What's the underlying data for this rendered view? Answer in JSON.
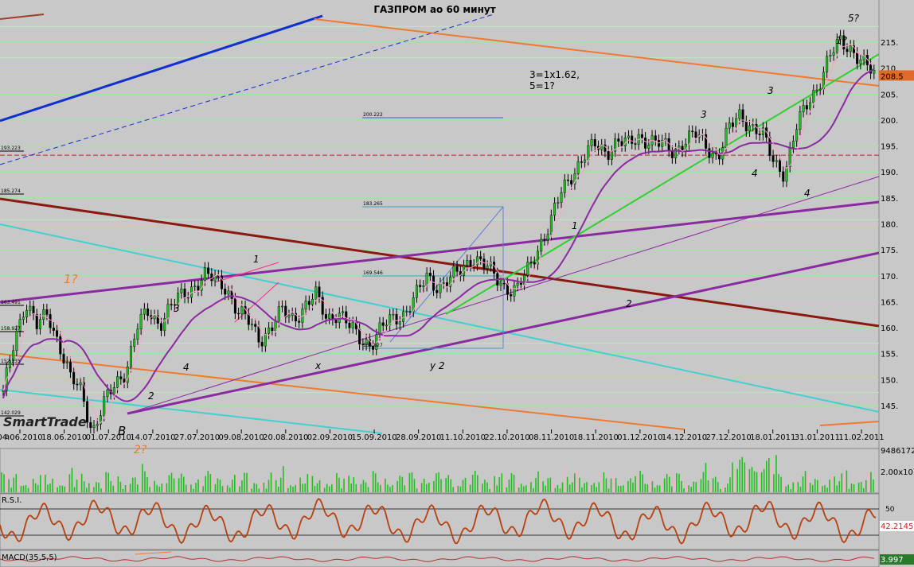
{
  "chart_data": [
    {
      "type": "candlestick",
      "title": "ГАЗПРОМ ао 60 минут",
      "y_ticks": [
        "215.",
        "210.",
        "208.5",
        "205.",
        "200.",
        "195.",
        "190.",
        "185.",
        "180.",
        "175.",
        "170.",
        "165.",
        "160.",
        "155.",
        "150.",
        "145."
      ],
      "ylim": [
        141,
        220
      ],
      "x_ticks": [
        "04.06.2010",
        "18.06.2010",
        "01.07.2010",
        "14.07.2010",
        "27.07.2010",
        "09.08.2010",
        "20.08.2010",
        "02.09.2010",
        "15.09.2010",
        "28.09.2010",
        "11.10.2010",
        "22.10.2010",
        "08.11.2010",
        "18.11.2010",
        "01.12.2010",
        "14.12.2010",
        "27.12.2010",
        "18.01.2011",
        "31.01.2011",
        "11.02.2011"
      ],
      "x_axis_prefix": "a",
      "current_price": "208.5",
      "level_labels": [
        "200.222",
        "193.223",
        "185.274",
        "183.265",
        "169.546",
        "163.491",
        "158.927",
        "155.827",
        "152.235",
        "142.029"
      ],
      "wave_labels": [
        "1?",
        "2?",
        "B",
        "1",
        "2",
        "3",
        "4",
        "x",
        "y 2",
        "1",
        "2",
        "3",
        "4",
        "3",
        "4",
        "1?",
        "5?"
      ],
      "annotation": [
        "3=1x1.62,",
        "5=1?"
      ],
      "watermark": "SmartTrade",
      "close_series": [
        147,
        158,
        165,
        160,
        163,
        157,
        150,
        148,
        140,
        145,
        149,
        152,
        160,
        163,
        161,
        164,
        166,
        168,
        170,
        169,
        168,
        163,
        161,
        158,
        160,
        163,
        162,
        164,
        166,
        162,
        163,
        160,
        158,
        157,
        160,
        162,
        163,
        166,
        170,
        168,
        169,
        171,
        174,
        172,
        170,
        168,
        167,
        171,
        176,
        180,
        186,
        190,
        193,
        195,
        194,
        196,
        195,
        197,
        196,
        195,
        194,
        196,
        197,
        195,
        193,
        198,
        201,
        199,
        197,
        192,
        190,
        198,
        203,
        207,
        212,
        215,
        214,
        211,
        208.5
      ]
    },
    {
      "type": "bar",
      "name": "volume",
      "y_ticks": [
        "9486172",
        "2.00x10⁷"
      ]
    },
    {
      "type": "line",
      "name": "R.S.I.",
      "y_ticks": [
        "50",
        "42.2145"
      ]
    },
    {
      "type": "line",
      "name": "MACD(35,5,5)",
      "y_ticks": [
        "3.997"
      ]
    }
  ]
}
